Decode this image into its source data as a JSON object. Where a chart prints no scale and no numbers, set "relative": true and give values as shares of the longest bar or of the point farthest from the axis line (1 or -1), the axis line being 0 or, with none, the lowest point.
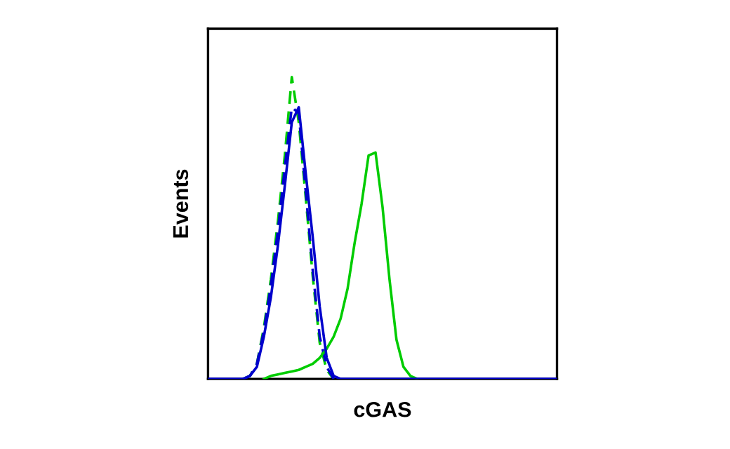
{
  "chart_data": {
    "type": "line",
    "xlabel": "cGAS",
    "ylabel": "Events",
    "relative": true,
    "grid": false,
    "legend": false,
    "marker": "none",
    "categories": [
      null,
      null,
      null,
      null,
      null,
      null,
      null,
      null,
      null,
      null,
      null,
      null,
      null,
      null,
      null,
      null,
      null,
      null,
      null,
      null,
      null,
      null,
      null,
      null,
      null,
      null,
      null,
      null,
      null,
      null,
      null,
      null,
      null,
      null,
      null,
      null,
      null,
      null,
      null,
      null,
      null,
      null,
      null,
      null,
      null,
      null,
      null,
      null,
      null,
      null,
      null
    ],
    "series": [
      {
        "color": "#00cc00",
        "line_style": "dashed",
        "values": [
          null,
          null,
          null,
          null,
          null,
          0,
          0.01,
          0.05,
          0.17,
          0.33,
          0.52,
          0.74,
          1,
          0.85,
          0.6,
          0.34,
          0.12,
          0.03,
          0,
          null,
          null,
          null,
          null,
          null,
          null,
          null,
          null,
          null,
          null,
          null,
          null,
          null,
          null,
          null,
          null,
          null,
          null,
          null,
          null,
          null,
          null,
          null,
          null,
          null,
          null,
          null,
          null,
          null,
          null,
          null,
          null
        ]
      },
      {
        "color": "#0000cc",
        "line_style": "dashed",
        "values": [
          null,
          null,
          null,
          null,
          null,
          0,
          0.01,
          0.05,
          0.16,
          0.31,
          0.49,
          0.7,
          0.9,
          0.88,
          0.62,
          0.36,
          0.14,
          0.04,
          0,
          null,
          null,
          null,
          null,
          null,
          null,
          null,
          null,
          null,
          null,
          null,
          null,
          null,
          null,
          null,
          null,
          null,
          null,
          null,
          null,
          null,
          null,
          null,
          null,
          null,
          null,
          null,
          null,
          null,
          null,
          null,
          null
        ]
      },
      {
        "color": "#00cc00",
        "line_style": "solid",
        "values": [
          null,
          null,
          null,
          null,
          null,
          null,
          null,
          null,
          0,
          0.01,
          0.015,
          0.02,
          0.025,
          0.03,
          0.04,
          0.05,
          0.07,
          0.1,
          0.14,
          0.2,
          0.3,
          0.45,
          0.58,
          0.74,
          0.75,
          0.57,
          0.33,
          0.13,
          0.04,
          0.01,
          0,
          null,
          null,
          null,
          null,
          null,
          null,
          null,
          null,
          null,
          null,
          null,
          null,
          null,
          null,
          null,
          null,
          null,
          null,
          null,
          null
        ]
      },
      {
        "color": "#0000cc",
        "line_style": "solid",
        "values": [
          0,
          0,
          0,
          0,
          0,
          0,
          0.01,
          0.04,
          0.14,
          0.27,
          0.44,
          0.64,
          0.85,
          0.9,
          0.68,
          0.47,
          0.24,
          0.07,
          0.01,
          0,
          0,
          0,
          0,
          0,
          0,
          0,
          0,
          0,
          0,
          0,
          0,
          0,
          0,
          0,
          0,
          0,
          0,
          0,
          0,
          0,
          0,
          0,
          0,
          0,
          0,
          0,
          0,
          0,
          0,
          0,
          0
        ]
      }
    ]
  }
}
